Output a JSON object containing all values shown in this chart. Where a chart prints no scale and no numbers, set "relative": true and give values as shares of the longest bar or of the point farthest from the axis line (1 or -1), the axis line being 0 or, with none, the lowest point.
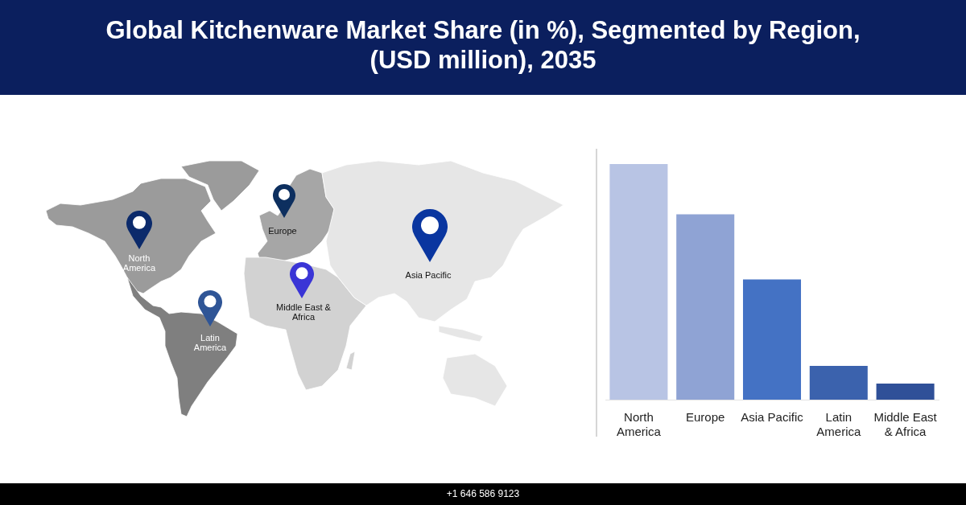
{
  "chart_data": {
    "type": "bar",
    "title": "Global Kitchenware Market Share (in %), Segmented by Region, (USD million), 2035",
    "categories": [
      "North America",
      "Europe",
      "Asia Pacific",
      "Latin America",
      "Middle East & Africa"
    ],
    "values": [
      1,
      0.787,
      0.51,
      0.143,
      0.068
    ],
    "colors": [
      "#b8c4e4",
      "#8fa3d4",
      "#4472c4",
      "#3b62ad",
      "#2f5098"
    ],
    "relative": true,
    "annotations": [
      "North America",
      "Europe",
      "Asia Pacific",
      "Middle East & Africa",
      "Latin America",
      "+1 646 586 9123"
    ]
  }
}
